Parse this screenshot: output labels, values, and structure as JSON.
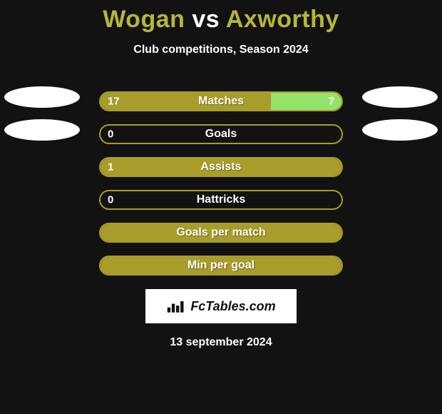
{
  "title": {
    "left": "Wogan",
    "sep": "vs",
    "right": "Axworthy"
  },
  "subtitle": "Club competitions, Season 2024",
  "colors": {
    "left_fill": "#a89c2b",
    "right_fill": "#94e26a",
    "border": "#a89c2b",
    "empty_fill": "#a89c2b",
    "text": "#ffffff",
    "ellipse": "#ffffff",
    "title_color": "#b6b63a"
  },
  "bar_style": {
    "inner_width": 338,
    "height": 28,
    "border_radius": 14,
    "border_width": 2,
    "label_fontsize": 16,
    "value_fontsize": 15
  },
  "rows": [
    {
      "label": "Matches",
      "left_value": "17",
      "right_value": "7",
      "left_pct": 70.8,
      "right_pct": 29.2,
      "show_left_ellipse": true,
      "show_right_ellipse": true,
      "left_has_fill": true,
      "right_has_fill": true
    },
    {
      "label": "Goals",
      "left_value": "0",
      "right_value": "",
      "left_pct": 0,
      "right_pct": 0,
      "show_left_ellipse": true,
      "show_right_ellipse": true,
      "left_has_fill": false,
      "right_has_fill": false
    },
    {
      "label": "Assists",
      "left_value": "1",
      "right_value": "",
      "left_pct": 100,
      "right_pct": 0,
      "show_left_ellipse": false,
      "show_right_ellipse": false,
      "left_has_fill": true,
      "right_has_fill": false
    },
    {
      "label": "Hattricks",
      "left_value": "0",
      "right_value": "",
      "left_pct": 0,
      "right_pct": 0,
      "show_left_ellipse": false,
      "show_right_ellipse": false,
      "left_has_fill": false,
      "right_has_fill": false
    },
    {
      "label": "Goals per match",
      "left_value": "",
      "right_value": "",
      "left_pct": 100,
      "right_pct": 0,
      "show_left_ellipse": false,
      "show_right_ellipse": false,
      "left_has_fill": true,
      "right_has_fill": false
    },
    {
      "label": "Min per goal",
      "left_value": "",
      "right_value": "",
      "left_pct": 100,
      "right_pct": 0,
      "show_left_ellipse": false,
      "show_right_ellipse": false,
      "left_has_fill": true,
      "right_has_fill": false
    }
  ],
  "footer": {
    "brand": "FcTables.com"
  },
  "date": "13 september 2024"
}
